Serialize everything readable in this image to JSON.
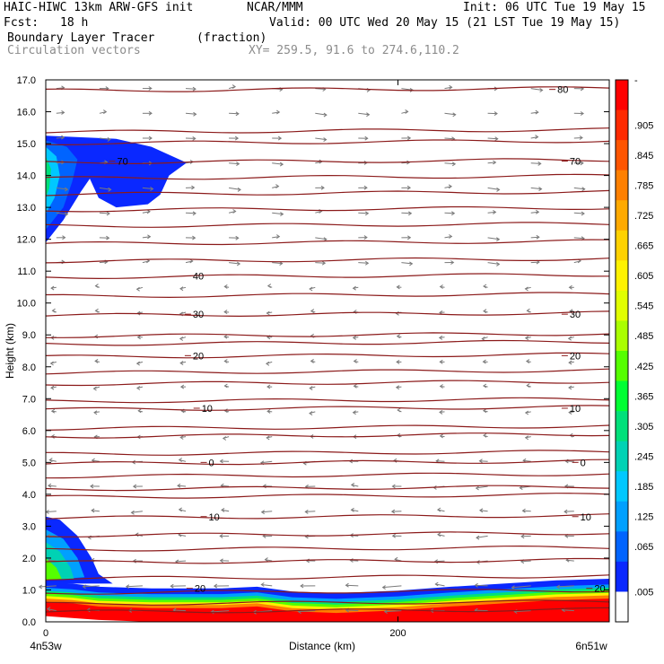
{
  "header": {
    "model": "HAIC-HIWC 13km ARW-GFS init",
    "org": "NCAR/MMM",
    "init": "Init: 06 UTC Tue 19 May 15",
    "fcst_label": "Fcst:",
    "fcst_value": "18 h",
    "valid": "Valid: 00 UTC Wed 20 May 15 (21 LST Tue 19 May 15)",
    "field": "Boundary Layer Tracer",
    "units": "(fraction)",
    "vectors": "Circulation vectors",
    "xy": "XY= 259.5, 91.6 to 274.6,110.2"
  },
  "chart_data": {
    "type": "heatmap",
    "title": "Boundary Layer Tracer",
    "units": "(fraction)",
    "ylabel": "Height (km)",
    "xlabel": "Distance (km)",
    "x_start_label": "4n53w",
    "x_end_label": "6n51w",
    "x_tick_labels": [
      "0",
      "200"
    ],
    "x_ticks": [
      0,
      200
    ],
    "xlim": [
      0,
      320
    ],
    "ylim": [
      0,
      17
    ],
    "y_tick_labels": [
      "0.0",
      "1.0",
      "2.0",
      "3.0",
      "4.0",
      "5.0",
      "6.0",
      "7.0",
      "8.0",
      "9.0",
      "10.0",
      "11.0",
      "12.0",
      "13.0",
      "14.0",
      "15.0",
      "16.0",
      "17.0"
    ],
    "colorbar": {
      "labels": [
        "-",
        ".905",
        ".845",
        ".785",
        ".725",
        ".665",
        ".605",
        ".545",
        ".485",
        ".425",
        ".365",
        ".305",
        ".245",
        ".185",
        ".125",
        ".065",
        ".005"
      ],
      "colors": [
        "#ff0000",
        "#ff2a00",
        "#ff5500",
        "#ff8000",
        "#ffaa00",
        "#ffd200",
        "#fff200",
        "#e1ff00",
        "#aaff00",
        "#55ff00",
        "#00ff33",
        "#00e07a",
        "#00d2b4",
        "#00c8ff",
        "#00a0ff",
        "#0064ff",
        "#0a28ff",
        "#ffffff"
      ]
    },
    "temperature_contours": {
      "color": "#8b1a1a",
      "levels_km": [
        0.35,
        0.6,
        0.95,
        1.4,
        1.9,
        2.3,
        2.75,
        3.3,
        3.95,
        4.2,
        4.6,
        5.0,
        5.3,
        5.85,
        6.1,
        6.7,
        6.95,
        7.5,
        7.85,
        8.35,
        8.75,
        9.0,
        9.65,
        10.25,
        10.85,
        11.35,
        11.9,
        12.45,
        12.95,
        13.45,
        13.95,
        14.45,
        15.05,
        15.4,
        16.7
      ],
      "labels": [
        {
          "text": "80",
          "x": 290,
          "y": 16.7
        },
        {
          "text": "70",
          "x": 40,
          "y": 14.45
        },
        {
          "text": "70",
          "x": 297,
          "y": 14.45
        },
        {
          "text": "40",
          "x": 83,
          "y": 10.85
        },
        {
          "text": "30",
          "x": 83,
          "y": 9.65
        },
        {
          "text": "30",
          "x": 297,
          "y": 9.65
        },
        {
          "text": "20",
          "x": 83,
          "y": 8.35
        },
        {
          "text": "20",
          "x": 297,
          "y": 8.35
        },
        {
          "text": "10",
          "x": 88,
          "y": 6.7
        },
        {
          "text": "10",
          "x": 297,
          "y": 6.7
        },
        {
          "text": "0",
          "x": 92,
          "y": 5.0
        },
        {
          "text": "0",
          "x": 303,
          "y": 5.0
        },
        {
          "text": "10",
          "x": 92,
          "y": 3.3
        },
        {
          "text": "10",
          "x": 303,
          "y": 3.3
        },
        {
          "text": "20",
          "x": 84,
          "y": 1.05
        },
        {
          "text": "20",
          "x": 311,
          "y": 1.05
        }
      ]
    },
    "tracer_regions": [
      {
        "name": "upper-plume",
        "value": 0.05
      },
      {
        "name": "lower-left-plume",
        "value": 0.1
      },
      {
        "name": "boundary-layer",
        "value": 0.95
      }
    ],
    "legend": "right colorbar"
  }
}
